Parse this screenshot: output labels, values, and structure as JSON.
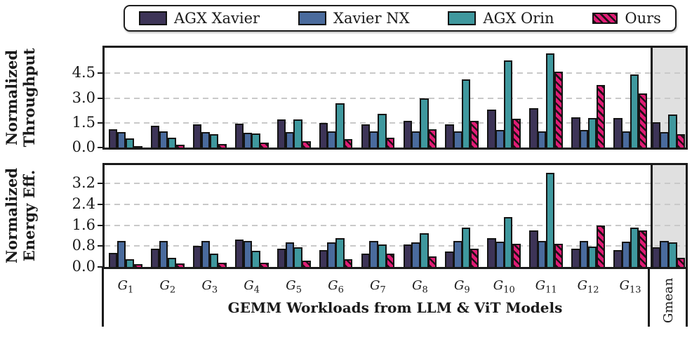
{
  "figure": {
    "xlabel": "GEMM Workloads from LLM & ViT Models",
    "gmean_label": "Gmean",
    "ylabel_top_line1": "Normalized",
    "ylabel_top_line2": "Throughput",
    "ylabel_bottom_line1": "Normalized",
    "ylabel_bottom_line2": "Energy Eff.",
    "colors": {
      "agx_xavier": "#3d3457",
      "xavier_nx": "#4a6b9d",
      "agx_orin": "#3f989e",
      "ours": "#e01c75",
      "bar_edge": "#141414",
      "gmean_panel_bg": "#e0e0e0",
      "gridline": "#c9c9c9"
    }
  },
  "legend": {
    "position": "top center, boxed with rounded corners",
    "items": [
      {
        "label": "AGX Xavier",
        "color": "#3d3457",
        "hatch": false
      },
      {
        "label": "Xavier NX",
        "color": "#4a6b9d",
        "hatch": false
      },
      {
        "label": "AGX Orin",
        "color": "#3f989e",
        "hatch": false
      },
      {
        "label": "Ours",
        "color": "#e01c75",
        "hatch": true
      }
    ]
  },
  "chart_data": [
    {
      "type": "bar",
      "title": "Normalized Throughput",
      "ylabel": "Normalized Throughput",
      "xlabel": "GEMM Workloads from LLM & ViT Models",
      "categories": [
        "G1",
        "G2",
        "G3",
        "G4",
        "G5",
        "G6",
        "G7",
        "G8",
        "G9",
        "G10",
        "G11",
        "G12",
        "G13",
        "Gmean"
      ],
      "yticks": [
        0.0,
        1.5,
        3.0,
        4.5
      ],
      "ylim": [
        0,
        6.05
      ],
      "grid": "horizontal dashed",
      "gmean_panel": "last category shaded gray, separated by vertical line",
      "series": [
        {
          "name": "AGX Xavier",
          "color": "#3d3457",
          "hatch": false,
          "values": [
            1.1,
            1.3,
            1.4,
            1.45,
            1.7,
            1.5,
            1.4,
            1.6,
            1.4,
            2.3,
            2.4,
            1.85,
            1.8,
            1.55
          ]
        },
        {
          "name": "Xavier NX",
          "color": "#4a6b9d",
          "hatch": false,
          "values": [
            0.95,
            1.0,
            0.95,
            0.9,
            0.95,
            1.0,
            1.0,
            1.0,
            1.0,
            1.05,
            1.0,
            1.05,
            1.0,
            0.95
          ]
        },
        {
          "name": "AGX Orin",
          "color": "#3f989e",
          "hatch": false,
          "values": [
            0.55,
            0.6,
            0.8,
            0.85,
            1.7,
            2.7,
            2.05,
            3.0,
            4.15,
            5.3,
            5.7,
            1.8,
            4.45,
            2.0
          ]
        },
        {
          "name": "Ours",
          "color": "#e01c75",
          "hatch": true,
          "values": [
            0.1,
            0.15,
            0.2,
            0.3,
            0.4,
            0.5,
            0.6,
            1.1,
            1.6,
            1.75,
            4.6,
            3.8,
            3.3,
            0.8
          ]
        }
      ]
    },
    {
      "type": "bar",
      "title": "Normalized Energy Eff.",
      "ylabel": "Normalized Energy Eff.",
      "xlabel": "GEMM Workloads from LLM & ViT Models",
      "categories": [
        "G1",
        "G2",
        "G3",
        "G4",
        "G5",
        "G6",
        "G7",
        "G8",
        "G9",
        "G10",
        "G11",
        "G12",
        "G13",
        "Gmean"
      ],
      "yticks": [
        0.0,
        0.8,
        1.6,
        2.4,
        3.2
      ],
      "ylim": [
        0,
        3.9
      ],
      "grid": "horizontal dashed",
      "gmean_panel": "last category shaded gray, separated by vertical line",
      "series": [
        {
          "name": "AGX Xavier",
          "color": "#3d3457",
          "hatch": false,
          "values": [
            0.55,
            0.7,
            0.8,
            1.05,
            0.7,
            0.65,
            0.5,
            0.85,
            0.6,
            1.1,
            1.4,
            0.7,
            0.65,
            0.75
          ]
        },
        {
          "name": "Xavier NX",
          "color": "#4a6b9d",
          "hatch": false,
          "values": [
            1.0,
            1.0,
            1.0,
            1.0,
            0.95,
            0.95,
            1.0,
            0.95,
            1.0,
            0.97,
            1.0,
            1.0,
            0.97,
            1.0
          ]
        },
        {
          "name": "AGX Orin",
          "color": "#3f989e",
          "hatch": false,
          "values": [
            0.3,
            0.35,
            0.5,
            0.62,
            0.75,
            1.1,
            0.85,
            1.3,
            1.5,
            1.9,
            3.6,
            0.77,
            1.5,
            0.95
          ]
        },
        {
          "name": "Ours",
          "color": "#e01c75",
          "hatch": true,
          "values": [
            0.1,
            0.13,
            0.15,
            0.15,
            0.25,
            0.3,
            0.5,
            0.4,
            0.7,
            0.88,
            0.9,
            1.6,
            1.4,
            0.35
          ]
        }
      ]
    }
  ]
}
